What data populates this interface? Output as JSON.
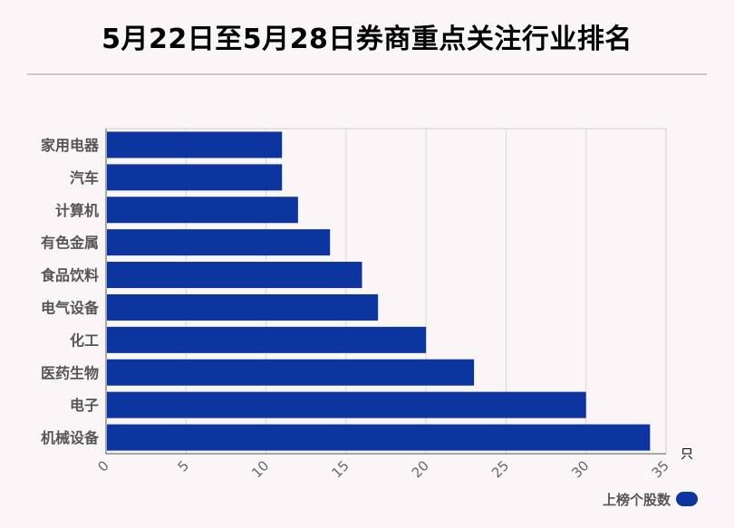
{
  "title": "5月22日至5月28日券商重点关注行业排名",
  "chart_data": {
    "type": "bar",
    "orientation": "horizontal",
    "categories": [
      "家用电器",
      "汽车",
      "计算机",
      "有色金属",
      "食品饮料",
      "电气设备",
      "化工",
      "医药生物",
      "电子",
      "机械设备"
    ],
    "values": [
      11,
      11,
      12,
      14,
      16,
      17,
      20,
      23,
      30,
      34
    ],
    "series": [
      {
        "name": "上榜个股数",
        "values": [
          11,
          11,
          12,
          14,
          16,
          17,
          20,
          23,
          30,
          34
        ]
      }
    ],
    "xlim": [
      0,
      35
    ],
    "xticks": [
      "0",
      "5",
      "10",
      "15",
      "20",
      "25",
      "30",
      "35"
    ],
    "xunit": "只",
    "grid": true,
    "legend_position": "bottom-right",
    "bar_color": "#0d35a0"
  }
}
